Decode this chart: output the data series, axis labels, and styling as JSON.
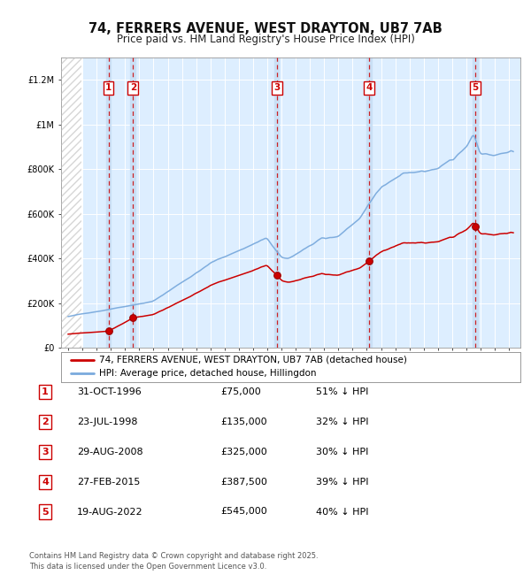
{
  "title": "74, FERRERS AVENUE, WEST DRAYTON, UB7 7AB",
  "subtitle": "Price paid vs. HM Land Registry's House Price Index (HPI)",
  "ylim": [
    0,
    1300000
  ],
  "yticks": [
    0,
    200000,
    400000,
    600000,
    800000,
    1000000,
    1200000
  ],
  "ytick_labels": [
    "£0",
    "£200K",
    "£400K",
    "£600K",
    "£800K",
    "£1M",
    "£1.2M"
  ],
  "sale_dates_num": [
    1996.83,
    1998.56,
    2008.66,
    2015.16,
    2022.63
  ],
  "sale_prices": [
    75000,
    135000,
    325000,
    387500,
    545000
  ],
  "sale_labels": [
    "1",
    "2",
    "3",
    "4",
    "5"
  ],
  "vline_color": "#cc0000",
  "sale_marker_color": "#cc0000",
  "hpi_color": "#7aaadd",
  "price_color": "#cc0000",
  "background_color": "#ffffff",
  "plot_bg_color": "#ddeeff",
  "legend_label_price": "74, FERRERS AVENUE, WEST DRAYTON, UB7 7AB (detached house)",
  "legend_label_hpi": "HPI: Average price, detached house, Hillingdon",
  "table_data": [
    [
      "1",
      "31-OCT-1996",
      "£75,000",
      "51% ↓ HPI"
    ],
    [
      "2",
      "23-JUL-1998",
      "£135,000",
      "32% ↓ HPI"
    ],
    [
      "3",
      "29-AUG-2008",
      "£325,000",
      "30% ↓ HPI"
    ],
    [
      "4",
      "27-FEB-2015",
      "£387,500",
      "39% ↓ HPI"
    ],
    [
      "5",
      "19-AUG-2022",
      "£545,000",
      "40% ↓ HPI"
    ]
  ],
  "footer": "Contains HM Land Registry data © Crown copyright and database right 2025.\nThis data is licensed under the Open Government Licence v3.0."
}
